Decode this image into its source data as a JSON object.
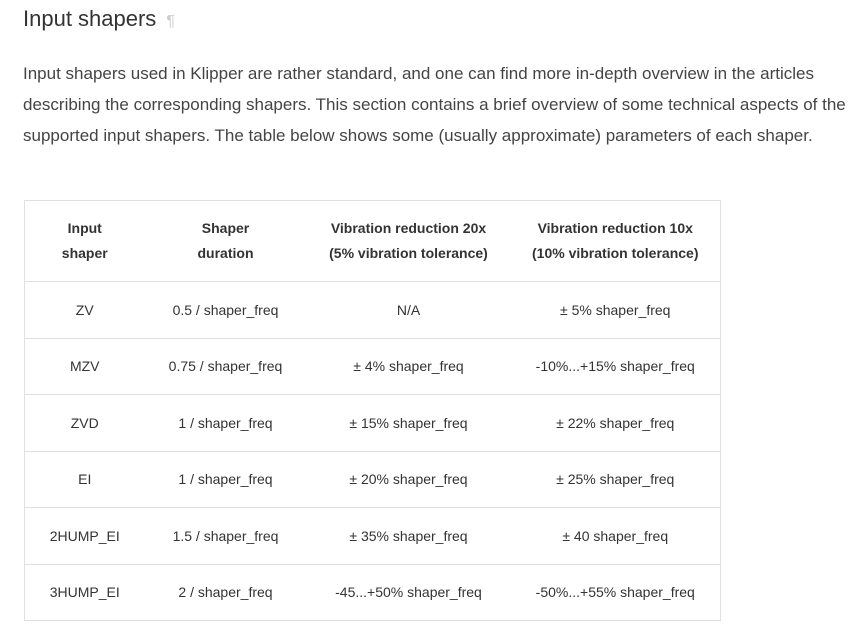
{
  "heading": {
    "title": "Input shapers",
    "anchor": "¶"
  },
  "intro": "Input shapers used in Klipper are rather standard, and one can find more in-depth overview in the articles describing the corresponding shapers. This section contains a brief overview of some technical aspects of the supported input shapers. The table below shows some (usually approximate) parameters of each shaper.",
  "table": {
    "headers": [
      [
        "Input",
        "shaper"
      ],
      [
        "Shaper",
        "duration"
      ],
      [
        "Vibration reduction 20x",
        "(5% vibration tolerance)"
      ],
      [
        "Vibration reduction 10x",
        "(10% vibration tolerance)"
      ]
    ],
    "rows": [
      [
        "ZV",
        "0.5 / shaper_freq",
        "N/A",
        "± 5% shaper_freq"
      ],
      [
        "MZV",
        "0.75 / shaper_freq",
        "± 4% shaper_freq",
        "-10%...+15% shaper_freq"
      ],
      [
        "ZVD",
        "1 / shaper_freq",
        "± 15% shaper_freq",
        "± 22% shaper_freq"
      ],
      [
        "EI",
        "1 / shaper_freq",
        "± 20% shaper_freq",
        "± 25% shaper_freq"
      ],
      [
        "2HUMP_EI",
        "1.5 / shaper_freq",
        "± 35% shaper_freq",
        "± 40 shaper_freq"
      ],
      [
        "3HUMP_EI",
        "2 / shaper_freq",
        "-45...+50% shaper_freq",
        "-50%...+55% shaper_freq"
      ]
    ]
  }
}
